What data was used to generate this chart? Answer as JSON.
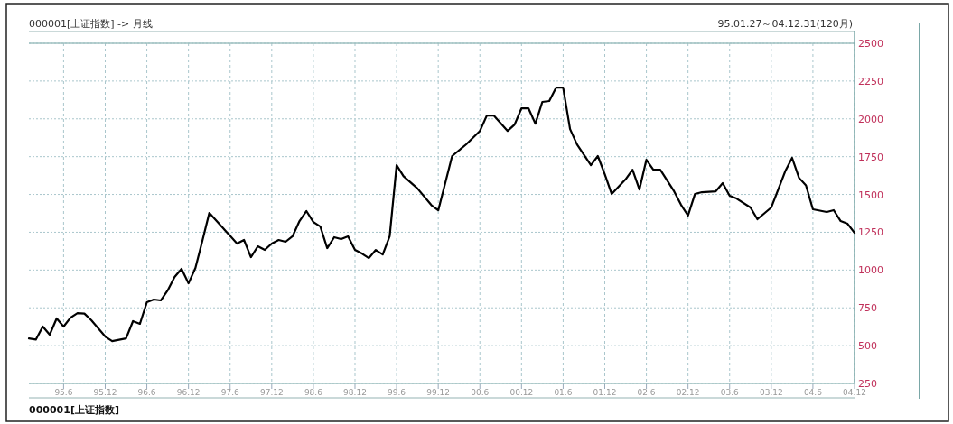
{
  "chart_data": {
    "type": "line",
    "title": "000001[上证指数] -> 月线",
    "subtitle": "95.01.27～04.12.31(120月)",
    "annotations": [
      "000001[上证指数]"
    ],
    "x": [
      "1995-01",
      "1995-02",
      "1995-03",
      "1995-04",
      "1995-05",
      "1995-06",
      "1995-07",
      "1995-08",
      "1995-09",
      "1995-10",
      "1995-12",
      "1996-01",
      "1996-03",
      "1996-04",
      "1996-05",
      "1996-06",
      "1996-07",
      "1996-08",
      "1996-09",
      "1996-10",
      "1996-11",
      "1996-12",
      "1997-01",
      "1997-02",
      "1997-03",
      "1997-05",
      "1997-07",
      "1997-08",
      "1997-09",
      "1997-10",
      "1997-11",
      "1997-12",
      "1998-01",
      "1998-02",
      "1998-03",
      "1998-04",
      "1998-05",
      "1998-06",
      "1998-07",
      "1998-08",
      "1998-09",
      "1998-10",
      "1998-11",
      "1998-12",
      "1999-01",
      "1999-02",
      "1999-03",
      "1999-04",
      "1999-05",
      "1999-06",
      "1999-07",
      "1999-09",
      "1999-11",
      "1999-12",
      "2000-02",
      "2000-04",
      "2000-06",
      "2000-07",
      "2000-08",
      "2000-10",
      "2000-11",
      "2000-12",
      "2001-01",
      "2001-02",
      "2001-03",
      "2001-04",
      "2001-05",
      "2001-06",
      "2001-07",
      "2001-08",
      "2001-10",
      "2001-11",
      "2001-12",
      "2002-01",
      "2002-03",
      "2002-04",
      "2002-05",
      "2002-06",
      "2002-07",
      "2002-08",
      "2002-10",
      "2002-11",
      "2002-12",
      "2003-01",
      "2003-02",
      "2003-04",
      "2003-05",
      "2003-06",
      "2003-07",
      "2003-09",
      "2003-10",
      "2003-12",
      "2004-01",
      "2004-02",
      "2004-03",
      "2004-04",
      "2004-05",
      "2004-06",
      "2004-08",
      "2004-09",
      "2004-10",
      "2004-11",
      "2004-12"
    ],
    "values": [
      548,
      540,
      626,
      572,
      680,
      626,
      685,
      715,
      712,
      668,
      560,
      530,
      548,
      662,
      644,
      787,
      805,
      799,
      865,
      954,
      1008,
      912,
      1014,
      1193,
      1378,
      1276,
      1175,
      1199,
      1085,
      1157,
      1133,
      1175,
      1199,
      1187,
      1223,
      1324,
      1390,
      1318,
      1288,
      1145,
      1217,
      1205,
      1223,
      1133,
      1109,
      1079,
      1133,
      1103,
      1223,
      1694,
      1620,
      1540,
      1430,
      1395,
      1754,
      1830,
      1920,
      2022,
      2022,
      1920,
      1962,
      2070,
      2070,
      1968,
      2112,
      2118,
      2207,
      2207,
      1932,
      1831,
      1694,
      1754,
      1634,
      1503,
      1600,
      1664,
      1533,
      1730,
      1664,
      1664,
      1520,
      1431,
      1360,
      1503,
      1515,
      1521,
      1575,
      1491,
      1473,
      1414,
      1336,
      1414,
      1533,
      1652,
      1742,
      1610,
      1560,
      1402,
      1384,
      1396,
      1324,
      1306,
      1246
    ],
    "color": "#000000",
    "grid": true,
    "line_style": "solid",
    "xlim": [
      "1995-01",
      "2004-12"
    ],
    "xticks": [
      {
        "value": "1995-06",
        "label": "95.6"
      },
      {
        "value": "1995-12",
        "label": "95.12"
      },
      {
        "value": "1996-06",
        "label": "96.6"
      },
      {
        "value": "1996-12",
        "label": "96.12"
      },
      {
        "value": "1997-06",
        "label": "97.6"
      },
      {
        "value": "1997-12",
        "label": "97.12"
      },
      {
        "value": "1998-06",
        "label": "98.6"
      },
      {
        "value": "1998-12",
        "label": "98.12"
      },
      {
        "value": "1999-06",
        "label": "99.6"
      },
      {
        "value": "1999-12",
        "label": "99.12"
      },
      {
        "value": "2000-06",
        "label": "00.6"
      },
      {
        "value": "2000-12",
        "label": "00.12"
      },
      {
        "value": "2001-06",
        "label": "01.6"
      },
      {
        "value": "2001-12",
        "label": "01.12"
      },
      {
        "value": "2002-06",
        "label": "02.6"
      },
      {
        "value": "2002-12",
        "label": "02.12"
      },
      {
        "value": "2003-06",
        "label": "03.6"
      },
      {
        "value": "2003-12",
        "label": "03.12"
      },
      {
        "value": "2004-06",
        "label": "04.6"
      },
      {
        "value": "2004-12",
        "label": "04.12"
      }
    ],
    "ylim": [
      250,
      2500
    ],
    "yticks": [
      250,
      500,
      750,
      1000,
      1250,
      1500,
      1750,
      2000,
      2250,
      2500
    ]
  }
}
